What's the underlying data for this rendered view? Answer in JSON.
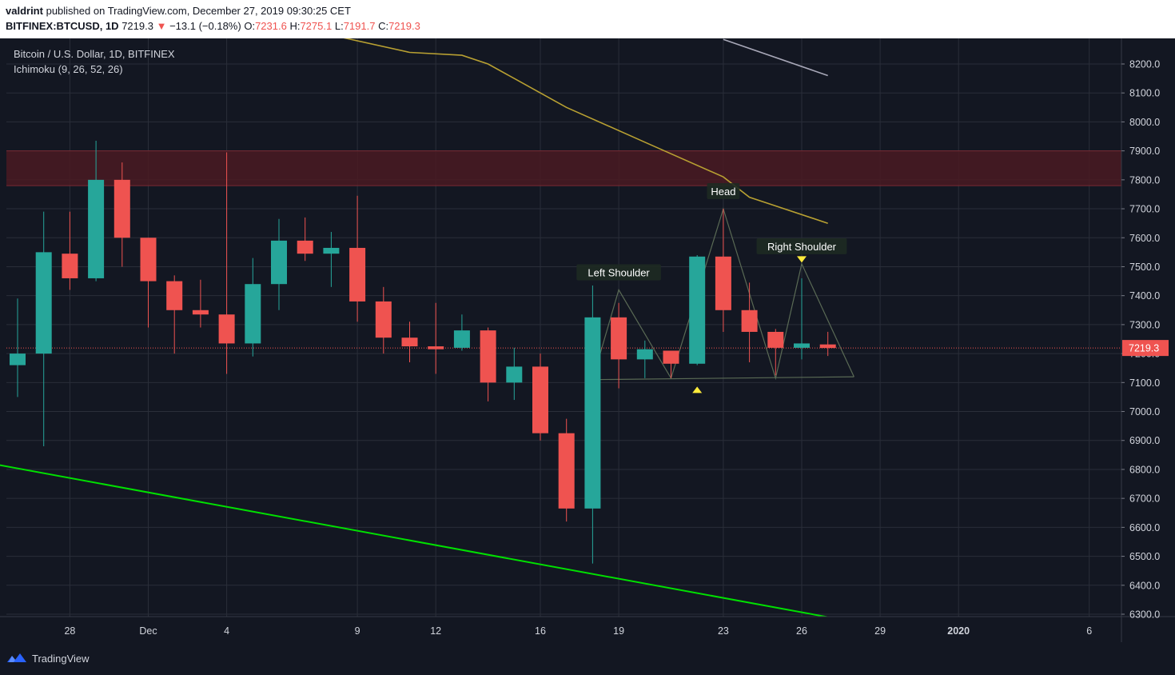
{
  "header": {
    "publisher": "valdrint",
    "published_text": "published on TradingView.com, December 27, 2019 09:30:25 CET",
    "symbol": "BITFINEX:BTCUSD, 1D",
    "last": "7219.3",
    "change_arrow": "▼",
    "change": "−13.1 (−0.18%)",
    "o_label": "O:",
    "o_value": "7231.6",
    "h_label": "H:",
    "h_value": "7275.1",
    "l_label": "L:",
    "l_value": "7191.7",
    "c_label": "C:",
    "c_value": "7219.3"
  },
  "chart_legend": {
    "title": "Bitcoin / U.S. Dollar, 1D, BITFINEX",
    "indicator": "Ichimoku (9, 26, 52, 26)"
  },
  "footer": {
    "brand": "TradingView",
    "logo_icon": "tradingview-logo-icon"
  },
  "colors": {
    "background": "#131722",
    "grid": "#2a2e39",
    "up": "#26a69a",
    "down": "#ef5350",
    "resistance_zone": "#4a1a22",
    "ichimoku_kijun": "#b8a032",
    "ichimoku_senkou": "#a8a8b8",
    "support_line": "#00e000",
    "pattern_line": "#5a6a55",
    "marker": "#ffeb3b"
  },
  "chart_data": {
    "type": "candlestick",
    "title": "Bitcoin / U.S. Dollar, 1D, BITFINEX",
    "ylim": [
      6280,
      8280
    ],
    "y_ticks": [
      6300,
      6400,
      6500,
      6600,
      6700,
      6800,
      6900,
      7000,
      7100,
      7200,
      7300,
      7400,
      7500,
      7600,
      7700,
      7800,
      7900,
      8000,
      8100,
      8200
    ],
    "x_ticks": [
      {
        "date": "2019-11-28",
        "label": "28"
      },
      {
        "date": "2019-12-01",
        "label": "Dec"
      },
      {
        "date": "2019-12-04",
        "label": "4"
      },
      {
        "date": "2019-12-09",
        "label": "9"
      },
      {
        "date": "2019-12-12",
        "label": "12"
      },
      {
        "date": "2019-12-16",
        "label": "16"
      },
      {
        "date": "2019-12-19",
        "label": "19"
      },
      {
        "date": "2019-12-23",
        "label": "23"
      },
      {
        "date": "2019-12-26",
        "label": "26"
      },
      {
        "date": "2019-12-29",
        "label": "29"
      },
      {
        "date": "2020-01-01",
        "label": "2020"
      },
      {
        "date": "2020-01-06",
        "label": "6"
      }
    ],
    "last_price_label": "7219.3",
    "last_price": 7219.3,
    "candles": [
      {
        "date": "2019-11-26",
        "o": 7160,
        "h": 7390,
        "l": 7050,
        "c": 7200
      },
      {
        "date": "2019-11-27",
        "o": 7200,
        "h": 7690,
        "l": 6880,
        "c": 7550
      },
      {
        "date": "2019-11-28",
        "o": 7545,
        "h": 7690,
        "l": 7420,
        "c": 7460
      },
      {
        "date": "2019-11-29",
        "o": 7460,
        "h": 7935,
        "l": 7450,
        "c": 7800
      },
      {
        "date": "2019-11-30",
        "o": 7800,
        "h": 7860,
        "l": 7500,
        "c": 7600
      },
      {
        "date": "2019-12-01",
        "o": 7600,
        "h": 7600,
        "l": 7290,
        "c": 7450
      },
      {
        "date": "2019-12-02",
        "o": 7450,
        "h": 7470,
        "l": 7200,
        "c": 7350
      },
      {
        "date": "2019-12-03",
        "o": 7350,
        "h": 7455,
        "l": 7290,
        "c": 7335
      },
      {
        "date": "2019-12-04",
        "o": 7335,
        "h": 7895,
        "l": 7130,
        "c": 7235
      },
      {
        "date": "2019-12-05",
        "o": 7235,
        "h": 7530,
        "l": 7190,
        "c": 7440
      },
      {
        "date": "2019-12-06",
        "o": 7440,
        "h": 7665,
        "l": 7350,
        "c": 7590
      },
      {
        "date": "2019-12-07",
        "o": 7590,
        "h": 7670,
        "l": 7520,
        "c": 7545
      },
      {
        "date": "2019-12-08",
        "o": 7545,
        "h": 7620,
        "l": 7430,
        "c": 7565
      },
      {
        "date": "2019-12-09",
        "o": 7565,
        "h": 7745,
        "l": 7310,
        "c": 7380
      },
      {
        "date": "2019-12-10",
        "o": 7380,
        "h": 7430,
        "l": 7200,
        "c": 7255
      },
      {
        "date": "2019-12-11",
        "o": 7255,
        "h": 7310,
        "l": 7170,
        "c": 7225
      },
      {
        "date": "2019-12-12",
        "o": 7225,
        "h": 7375,
        "l": 7130,
        "c": 7215
      },
      {
        "date": "2019-12-13",
        "o": 7220,
        "h": 7335,
        "l": 7210,
        "c": 7280
      },
      {
        "date": "2019-12-14",
        "o": 7280,
        "h": 7290,
        "l": 7035,
        "c": 7100
      },
      {
        "date": "2019-12-15",
        "o": 7100,
        "h": 7220,
        "l": 7040,
        "c": 7155
      },
      {
        "date": "2019-12-16",
        "o": 7155,
        "h": 7200,
        "l": 6900,
        "c": 6925
      },
      {
        "date": "2019-12-17",
        "o": 6925,
        "h": 6975,
        "l": 6620,
        "c": 6665
      },
      {
        "date": "2019-12-18",
        "o": 6665,
        "h": 7435,
        "l": 6475,
        "c": 7325
      },
      {
        "date": "2019-12-19",
        "o": 7325,
        "h": 7375,
        "l": 7080,
        "c": 7180
      },
      {
        "date": "2019-12-20",
        "o": 7180,
        "h": 7245,
        "l": 7115,
        "c": 7215
      },
      {
        "date": "2019-12-21",
        "o": 7210,
        "h": 7210,
        "l": 7115,
        "c": 7165
      },
      {
        "date": "2019-12-22",
        "o": 7165,
        "h": 7540,
        "l": 7160,
        "c": 7535
      },
      {
        "date": "2019-12-23",
        "o": 7535,
        "h": 7700,
        "l": 7275,
        "c": 7350
      },
      {
        "date": "2019-12-24",
        "o": 7350,
        "h": 7445,
        "l": 7170,
        "c": 7275
      },
      {
        "date": "2019-12-25",
        "o": 7275,
        "h": 7285,
        "l": 7125,
        "c": 7220
      },
      {
        "date": "2019-12-26",
        "o": 7220,
        "h": 7460,
        "l": 7180,
        "c": 7235
      },
      {
        "date": "2019-12-27",
        "o": 7231.6,
        "h": 7275.1,
        "l": 7191.7,
        "c": 7219.3
      }
    ],
    "overlays": {
      "kijun": {
        "points": [
          [
            "2019-12-08",
            8300
          ],
          [
            "2019-12-11",
            8240
          ],
          [
            "2019-12-13",
            8230
          ],
          [
            "2019-12-14",
            8200
          ],
          [
            "2019-12-15",
            8150
          ],
          [
            "2019-12-17",
            8050
          ],
          [
            "2019-12-20",
            7930
          ],
          [
            "2019-12-23",
            7810
          ],
          [
            "2019-12-24",
            7740
          ],
          [
            "2019-12-27",
            7650
          ]
        ]
      },
      "senkou": {
        "points": [
          [
            "2019-12-23",
            8285
          ],
          [
            "2019-12-27",
            8160
          ]
        ]
      },
      "support": {
        "points": [
          [
            "2019-11-25",
            6820
          ],
          [
            "2019-12-27",
            6290
          ]
        ]
      },
      "resistance_zone": {
        "from": 7780,
        "to": 7900
      }
    },
    "pattern": {
      "name": "head-and-shoulders",
      "annotations": [
        {
          "label": "Left Shoulder",
          "date": "2019-12-19",
          "value": 7420
        },
        {
          "label": "Head",
          "date": "2019-12-23",
          "value": 7700
        },
        {
          "label": "Right Shoulder",
          "date": "2019-12-26",
          "value": 7510
        }
      ],
      "outline": [
        [
          "2019-12-18",
          7110
        ],
        [
          "2019-12-19",
          7420
        ],
        [
          "2019-12-21",
          7115
        ],
        [
          "2019-12-23",
          7700
        ],
        [
          "2019-12-25",
          7115
        ],
        [
          "2019-12-26",
          7510
        ],
        [
          "2019-12-28",
          7120
        ]
      ],
      "neckline": [
        [
          "2019-12-18",
          7110
        ],
        [
          "2019-12-28",
          7120
        ]
      ],
      "markers": [
        {
          "date": "2019-12-22",
          "value": 7075,
          "direction": "up"
        },
        {
          "date": "2019-12-26",
          "value": 7525,
          "direction": "down"
        }
      ]
    }
  }
}
